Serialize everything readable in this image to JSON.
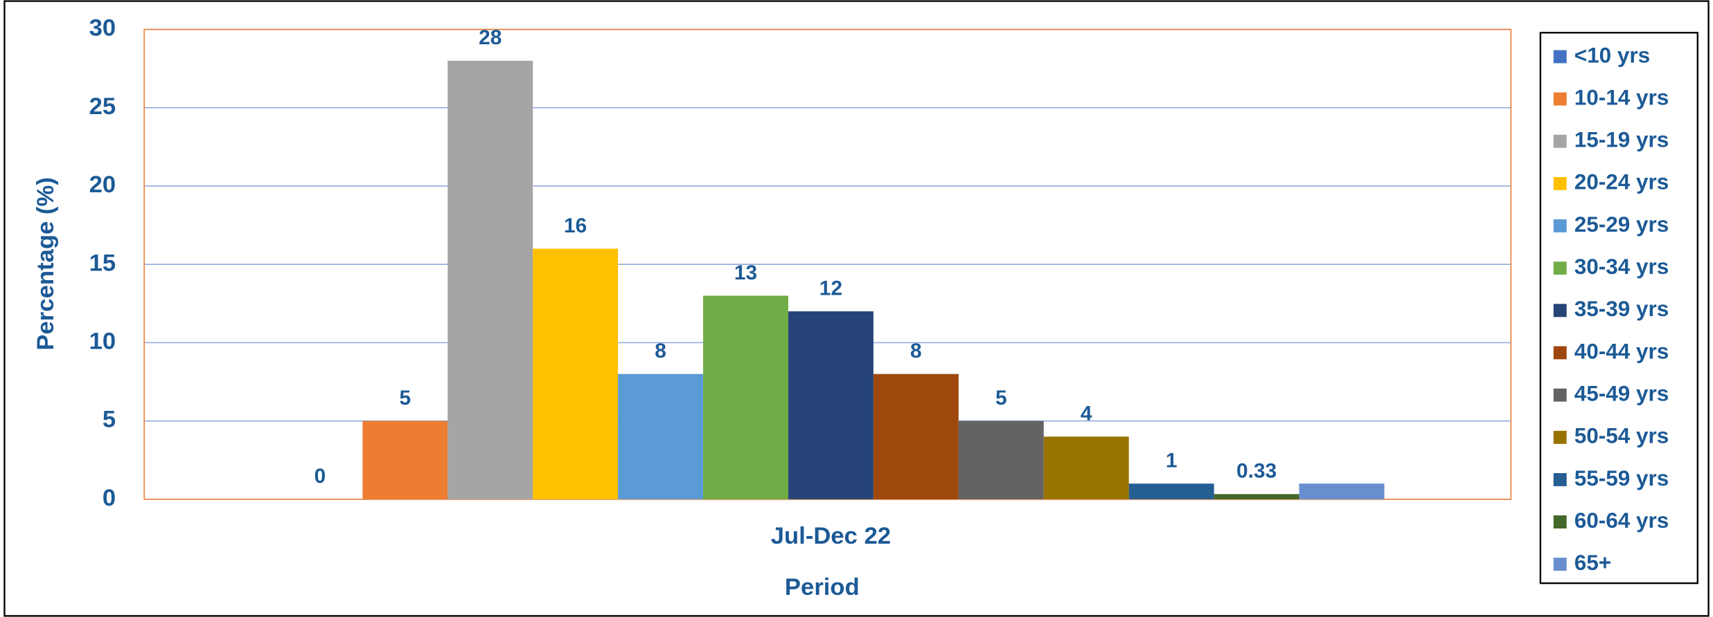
{
  "chart_data": {
    "type": "bar",
    "categories": [
      "Jul-Dec 22"
    ],
    "x_label": "Period",
    "y_label": "Percentage (%)",
    "ylim": [
      0,
      30
    ],
    "yticks": [
      0,
      5,
      10,
      15,
      20,
      25,
      30
    ],
    "grid": true,
    "legend": "right",
    "series": [
      {
        "name": "<10 yrs",
        "color": "#4472c4",
        "values": [
          0
        ]
      },
      {
        "name": "10-14 yrs",
        "color": "#ed7d31",
        "values": [
          5
        ]
      },
      {
        "name": "15-19 yrs",
        "color": "#a5a5a5",
        "values": [
          28
        ]
      },
      {
        "name": "20-24 yrs",
        "color": "#ffc000",
        "values": [
          16
        ]
      },
      {
        "name": "25-29 yrs",
        "color": "#5b9bd5",
        "values": [
          8
        ]
      },
      {
        "name": "30-34 yrs",
        "color": "#70ad47",
        "values": [
          13
        ]
      },
      {
        "name": "35-39 yrs",
        "color": "#264478",
        "values": [
          12
        ]
      },
      {
        "name": "40-44 yrs",
        "color": "#9e480e",
        "values": [
          8
        ]
      },
      {
        "name": "45-49 yrs",
        "color": "#636363",
        "values": [
          5
        ]
      },
      {
        "name": "50-54 yrs",
        "color": "#997300",
        "values": [
          4
        ]
      },
      {
        "name": "55-59 yrs",
        "color": "#255e91",
        "values": [
          1
        ]
      },
      {
        "name": "60-64 yrs",
        "color": "#43682b",
        "values": [
          0.33
        ]
      },
      {
        "name": "65+",
        "color": "#698ed0",
        "values": [
          1
        ],
        "show_label": false
      }
    ]
  }
}
